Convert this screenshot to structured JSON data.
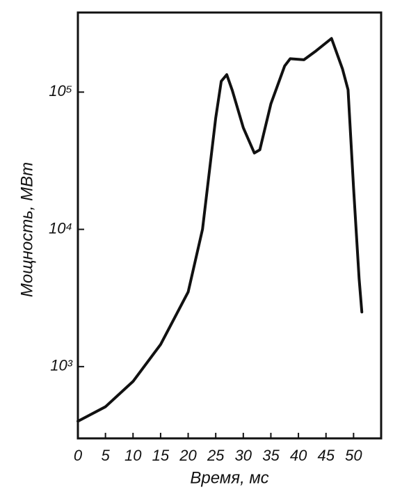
{
  "chart_data": {
    "type": "line",
    "xlabel": "Время, мс",
    "ylabel": "Мощность, МВт",
    "x": [
      0,
      5,
      10,
      15,
      20,
      22.6,
      25,
      26,
      27,
      28,
      30,
      32,
      33,
      35,
      37.5,
      38.5,
      41,
      43,
      46,
      48,
      49,
      50,
      51,
      51.5
    ],
    "series": [
      {
        "color": "#111111",
        "values": [
          400,
          510,
          780,
          1450,
          3500,
          10000,
          65000,
          120000,
          134000,
          103000,
          55000,
          36000,
          38000,
          82000,
          155000,
          175000,
          172000,
          197000,
          246000,
          147000,
          104000,
          20000,
          4400,
          2500
        ]
      }
    ],
    "xlim": [
      0,
      55
    ],
    "xticks": [
      0,
      5,
      10,
      15,
      20,
      25,
      30,
      35,
      40,
      45,
      50
    ],
    "ylim": [
      300,
      380000
    ],
    "yticks": [
      {
        "value": 1000,
        "label": "10³"
      },
      {
        "value": 10000,
        "label": "10⁴"
      },
      {
        "value": 100000,
        "label": "10⁵"
      }
    ],
    "ylog": true
  }
}
